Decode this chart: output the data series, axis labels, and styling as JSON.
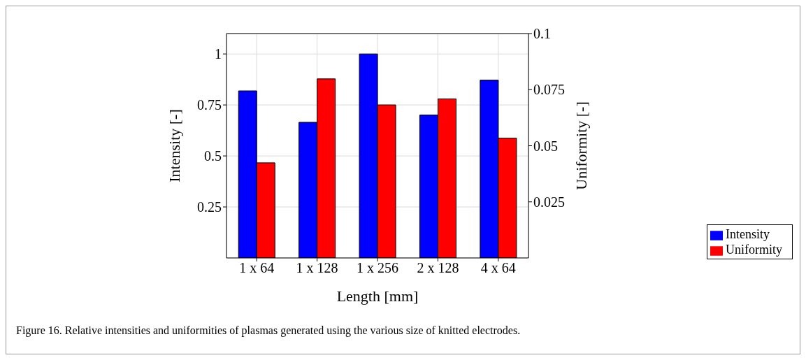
{
  "chart_data": {
    "type": "bar",
    "categories": [
      "1 x 64",
      "1 x 128",
      "1 x 256",
      "2 x 128",
      "4 x 64"
    ],
    "series": [
      {
        "name": "Intensity",
        "color": "#0000ff",
        "values": [
          0.819,
          0.665,
          1.0,
          0.701,
          0.872
        ]
      },
      {
        "name": "Uniformity",
        "color": "#ff0000",
        "axis": "y2",
        "values": [
          0.0424,
          0.0798,
          0.0682,
          0.0709,
          0.0534
        ]
      }
    ],
    "xlabel": "Length [mm]",
    "ylabel": "Intensity [-]",
    "y2label": "Uniformity [-]",
    "ylim": [
      0,
      1.1
    ],
    "yticks": [
      0.25,
      0.5,
      0.75,
      1
    ],
    "y2lim": [
      0,
      0.1
    ],
    "y2ticks": [
      0.025,
      0.05,
      0.075,
      0.1
    ],
    "grid": true,
    "legend": "right",
    "annotations": [
      "Figure 16. Relative intensities and uniformities of plasmas generated using the various size of knitted electrodes."
    ]
  }
}
